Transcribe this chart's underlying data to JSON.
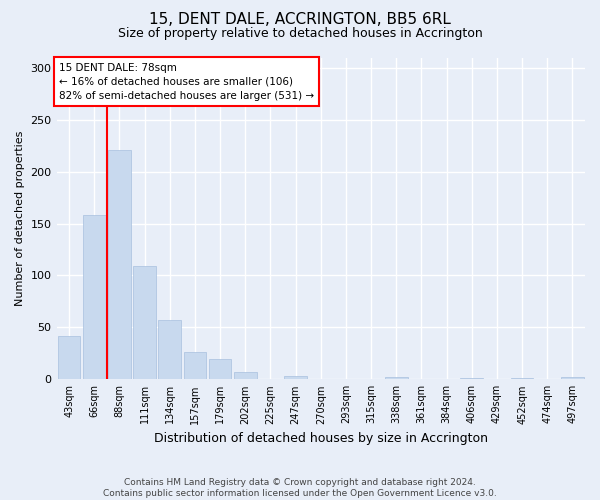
{
  "title": "15, DENT DALE, ACCRINGTON, BB5 6RL",
  "subtitle": "Size of property relative to detached houses in Accrington",
  "xlabel": "Distribution of detached houses by size in Accrington",
  "ylabel": "Number of detached properties",
  "bar_color": "#c8d9ee",
  "bar_edge_color": "#a8c0de",
  "categories": [
    "43sqm",
    "66sqm",
    "88sqm",
    "111sqm",
    "134sqm",
    "157sqm",
    "179sqm",
    "202sqm",
    "225sqm",
    "247sqm",
    "270sqm",
    "293sqm",
    "315sqm",
    "338sqm",
    "361sqm",
    "384sqm",
    "406sqm",
    "429sqm",
    "452sqm",
    "474sqm",
    "497sqm"
  ],
  "values": [
    42,
    158,
    221,
    109,
    57,
    26,
    20,
    7,
    0,
    3,
    0,
    0,
    0,
    2,
    0,
    0,
    1,
    0,
    1,
    0,
    2
  ],
  "red_line_x": 1.5,
  "annotation_text": "15 DENT DALE: 78sqm\n← 16% of detached houses are smaller (106)\n82% of semi-detached houses are larger (531) →",
  "annotation_box_color": "white",
  "annotation_box_edge_color": "red",
  "red_line_color": "red",
  "ylim": [
    0,
    310
  ],
  "yticks": [
    0,
    50,
    100,
    150,
    200,
    250,
    300
  ],
  "footer": "Contains HM Land Registry data © Crown copyright and database right 2024.\nContains public sector information licensed under the Open Government Licence v3.0.",
  "background_color": "#e8eef8",
  "plot_background_color": "#e8eef8",
  "grid_color": "white",
  "title_fontsize": 11,
  "subtitle_fontsize": 9,
  "ylabel_fontsize": 8,
  "xlabel_fontsize": 9,
  "tick_fontsize": 7,
  "annotation_fontsize": 7.5,
  "footer_fontsize": 6.5
}
